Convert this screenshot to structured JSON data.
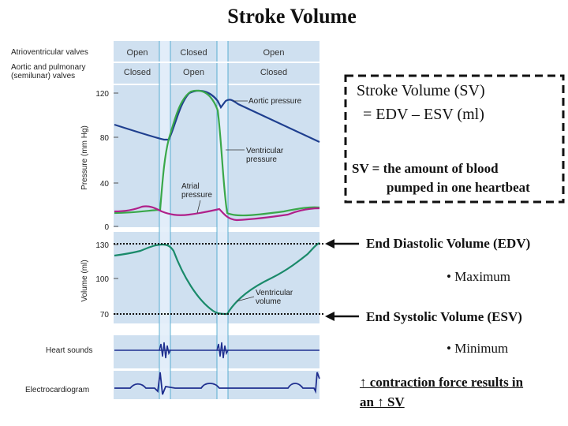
{
  "title": "Stroke Volume",
  "valves": {
    "av_label": "Atrioventricular valves",
    "semilunar_label_1": "Aortic and pulmonary",
    "semilunar_label_2": "(semilunar) valves",
    "av_states": [
      "Open",
      "Closed",
      "Open"
    ],
    "semilunar_states": [
      "Closed",
      "Open",
      "Closed"
    ]
  },
  "pressure_chart": {
    "ylabel": "Pressure (mm Hg)",
    "ticks": [
      "120",
      "80",
      "40",
      "0"
    ],
    "labels": {
      "aortic": "Aortic pressure",
      "ventricular_1": "Ventricular",
      "ventricular_2": "pressure",
      "atrial_1": "Atrial",
      "atrial_2": "pressure"
    }
  },
  "volume_chart": {
    "ylabel": "Volume (ml)",
    "ticks": [
      "130",
      "100",
      "70"
    ],
    "labels": {
      "ventricular_1": "Ventricular",
      "ventricular_2": "volume"
    }
  },
  "heart_sounds_label": "Heart sounds",
  "ecg_label": "Electrocardiogram",
  "definition_box": {
    "line1": "Stroke Volume (SV)",
    "line2": "= EDV – ESV (ml)",
    "line3": "SV = the amount of blood",
    "line4": "pumped in one heartbeat"
  },
  "edv_label": "End Diastolic Volume (EDV)",
  "maximum_label": "• Maximum",
  "esv_label": "End Systolic Volume (ESV)",
  "minimum_label": "• Minimum",
  "contraction_line1": "↑ contraction force results in",
  "contraction_line2": "an ↑ SV",
  "colors": {
    "aortic": "#1f3f8f",
    "ventricular": "#3aa84a",
    "atrial": "#b0208a",
    "volume": "#1a8a6a",
    "panel_bg": "#cfe0f0",
    "dashed_box": "#111111"
  }
}
